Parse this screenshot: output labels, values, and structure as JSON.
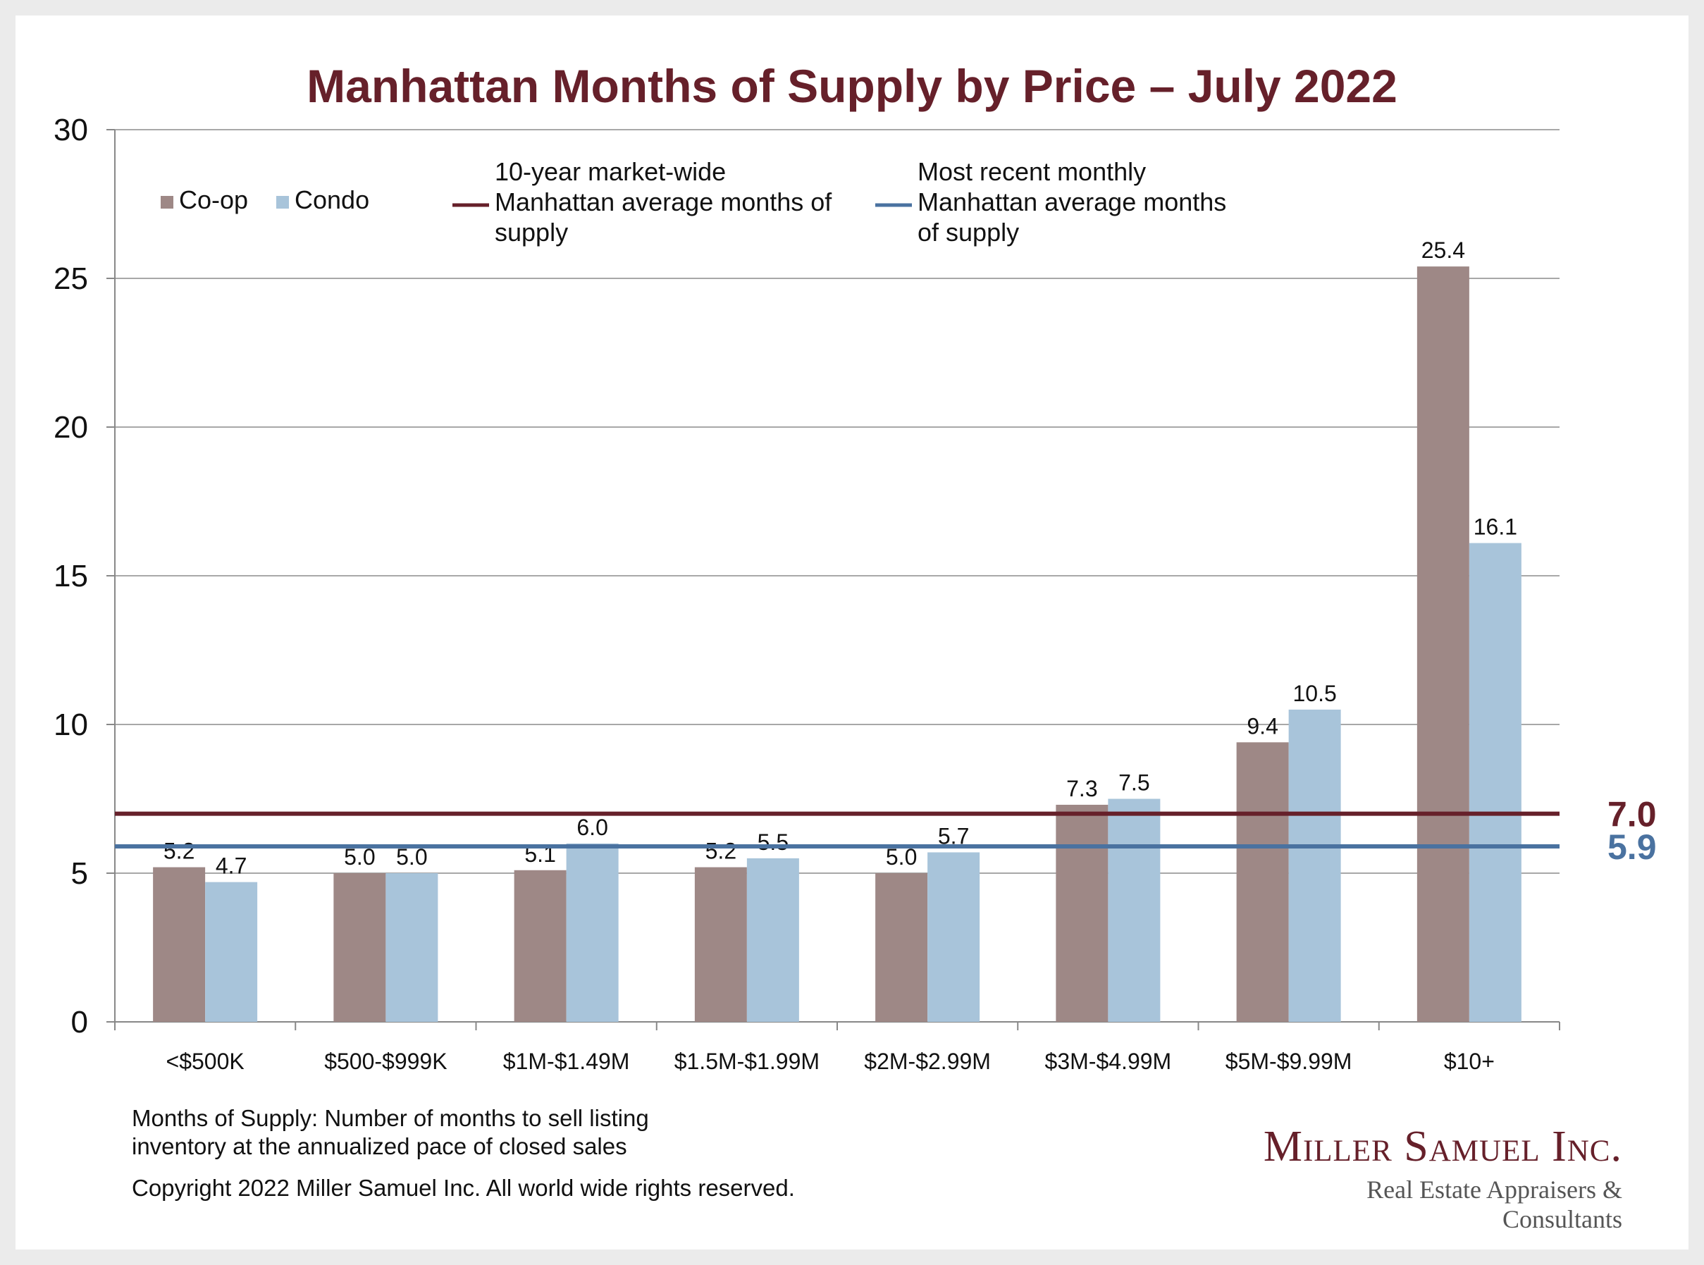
{
  "chart_data": {
    "type": "bar",
    "title": "Manhattan Months of Supply by Price – July 2022",
    "categories": [
      "<$500K",
      "$500-$999K",
      "$1M-$1.49M",
      "$1.5M-$1.99M",
      "$2M-$2.99M",
      "$3M-$4.99M",
      "$5M-$9.99M",
      "$10+"
    ],
    "series": [
      {
        "name": "Co-op",
        "color": "#9e8886",
        "values": [
          5.2,
          5.0,
          5.1,
          5.2,
          5.0,
          7.3,
          9.4,
          25.4
        ],
        "labels": [
          "5.2",
          "5.0",
          "5.1",
          "5.2",
          "5.0",
          "7.3",
          "9.4",
          "25.4"
        ]
      },
      {
        "name": "Condo",
        "color": "#a8c4da",
        "values": [
          4.7,
          5.0,
          6.0,
          5.5,
          5.7,
          7.5,
          10.5,
          16.1
        ],
        "labels": [
          "4.7",
          "5.0",
          "6.0",
          "5.5",
          "5.7",
          "7.5",
          "10.5",
          "16.1"
        ]
      }
    ],
    "reference_lines": [
      {
        "name": "10-year market-wide Manhattan average months of supply",
        "legend_lines": [
          "10-year market-wide",
          "Manhattan average months of",
          "supply"
        ],
        "value": 7.0,
        "label": "7.0",
        "color": "#66202a"
      },
      {
        "name": "Most recent monthly Manhattan average months of supply",
        "legend_lines": [
          "Most recent monthly",
          "Manhattan average months",
          "of supply"
        ],
        "value": 5.9,
        "label": "5.9",
        "color": "#4a72a0"
      }
    ],
    "ylim": [
      0,
      30
    ],
    "yticks": [
      0,
      5,
      10,
      15,
      20,
      25,
      30
    ],
    "grid": true,
    "legend_position": "top-left"
  },
  "notes": {
    "definition_line1": "Months of Supply: Number of months to sell listing",
    "definition_line2": "inventory at the annualized pace of closed sales",
    "copyright": "Copyright 2022 Miller Samuel Inc.  All world wide rights reserved."
  },
  "brand": {
    "name": "Miller Samuel Inc.",
    "tagline": "Real Estate Appraisers & Consultants"
  }
}
